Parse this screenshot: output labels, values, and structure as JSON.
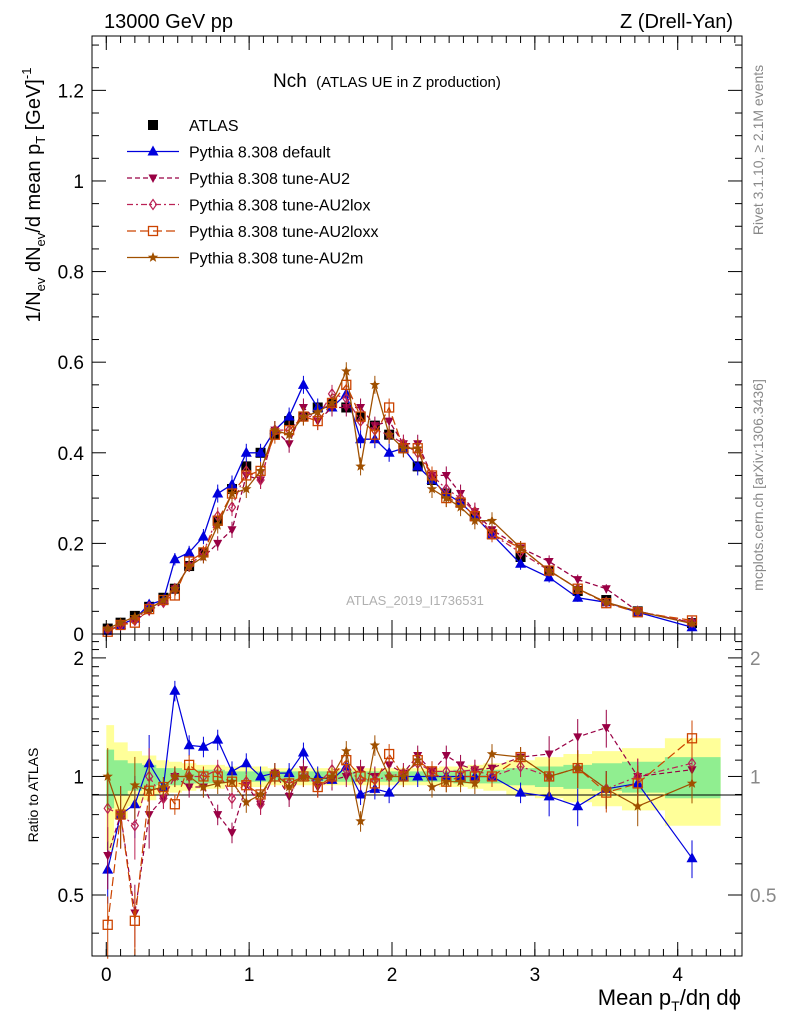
{
  "header": {
    "left": "13000 GeV pp",
    "right": "Z (Drell-Yan)"
  },
  "title": {
    "main": "Nch",
    "sub": "(ATLAS UE in Z production)"
  },
  "watermark": "ATLAS_2019_I1736531",
  "side_text": {
    "upper": "Rivet 3.1.10, ≥ 2.1M events",
    "lower": "mcplots.cern.ch [arXiv:1306.3436]"
  },
  "axes": {
    "ylabel_main": "1/N_ev dN_ev/d mean p_T [GeV]^-1",
    "ylabel_ratio": "Ratio to ATLAS",
    "xlabel": "Mean p_T/dη dϕ"
  },
  "colors": {
    "atlas": "#000000",
    "default": "#0000dd",
    "au2": "#990044",
    "au2lox": "#bb2255",
    "au2loxx": "#cc4400",
    "au2m": "#a05000",
    "band_inner": "#90ee90",
    "band_outer": "#ffff99"
  },
  "chart_data": [
    {
      "type": "scatter",
      "panel": "main",
      "xlim": [
        -0.1,
        4.45
      ],
      "ylim": [
        0,
        1.32
      ],
      "x_ticks": [
        0,
        1,
        2,
        3,
        4
      ],
      "y_ticks": [
        0,
        0.2,
        0.4,
        0.6,
        0.8,
        1,
        1.2
      ],
      "y_tick_labels": [
        "0",
        "0.2",
        "0.4",
        "0.6",
        "0.8",
        "1",
        "1.2"
      ],
      "x": [
        0.01,
        0.1,
        0.2,
        0.3,
        0.4,
        0.48,
        0.58,
        0.68,
        0.78,
        0.88,
        0.98,
        1.08,
        1.18,
        1.28,
        1.38,
        1.48,
        1.58,
        1.68,
        1.78,
        1.88,
        1.98,
        2.08,
        2.18,
        2.28,
        2.38,
        2.48,
        2.58,
        2.7,
        2.9,
        3.1,
        3.3,
        3.5,
        3.72,
        4.1
      ],
      "legend_position": "top-left",
      "series": [
        {
          "name": "ATLAS",
          "key": "atlas",
          "marker": "square",
          "line": "none",
          "values": [
            0.012,
            0.025,
            0.04,
            0.06,
            0.08,
            0.1,
            0.15,
            0.18,
            0.25,
            0.32,
            0.37,
            0.4,
            0.44,
            0.47,
            0.48,
            0.5,
            0.51,
            0.5,
            0.48,
            0.46,
            0.44,
            0.41,
            0.37,
            0.34,
            0.31,
            0.29,
            0.26,
            0.22,
            0.17,
            0.14,
            0.095,
            0.075,
            0.05,
            0.024
          ]
        },
        {
          "name": "Pythia 8.308 default",
          "key": "default",
          "marker": "triangle-up",
          "line": "solid",
          "values": [
            0.007,
            0.02,
            0.034,
            0.065,
            0.075,
            0.165,
            0.18,
            0.215,
            0.31,
            0.33,
            0.4,
            0.4,
            0.45,
            0.48,
            0.55,
            0.5,
            0.5,
            0.53,
            0.43,
            0.43,
            0.4,
            0.41,
            0.37,
            0.34,
            0.31,
            0.29,
            0.26,
            0.22,
            0.155,
            0.125,
            0.08,
            0.07,
            0.048,
            0.015
          ]
        },
        {
          "name": "Pythia 8.308 tune-AU2",
          "key": "au2",
          "marker": "triangle-down",
          "line": "dashed",
          "values": [
            0.008,
            0.02,
            0.03,
            0.05,
            0.07,
            0.1,
            0.15,
            0.17,
            0.2,
            0.23,
            0.35,
            0.34,
            0.45,
            0.42,
            0.5,
            0.47,
            0.5,
            0.5,
            0.5,
            0.46,
            0.47,
            0.42,
            0.42,
            0.35,
            0.35,
            0.31,
            0.27,
            0.23,
            0.19,
            0.16,
            0.12,
            0.1,
            0.05,
            0.025
          ]
        },
        {
          "name": "Pythia 8.308 tune-AU2lox",
          "key": "au2lox",
          "marker": "diamond",
          "line": "dashdot",
          "values": [
            0.01,
            0.02,
            0.03,
            0.06,
            0.07,
            0.1,
            0.15,
            0.18,
            0.26,
            0.28,
            0.36,
            0.34,
            0.45,
            0.45,
            0.48,
            0.48,
            0.53,
            0.52,
            0.47,
            0.45,
            0.44,
            0.42,
            0.4,
            0.35,
            0.32,
            0.3,
            0.27,
            0.22,
            0.18,
            0.14,
            0.1,
            0.07,
            0.05,
            0.026
          ]
        },
        {
          "name": "Pythia 8.308 tune-AU2loxx",
          "key": "au2loxx",
          "marker": "square-open",
          "line": "longdash",
          "values": [
            0.005,
            0.02,
            0.025,
            0.055,
            0.075,
            0.085,
            0.16,
            0.18,
            0.25,
            0.31,
            0.35,
            0.36,
            0.44,
            0.45,
            0.48,
            0.47,
            0.51,
            0.55,
            0.48,
            0.44,
            0.5,
            0.41,
            0.41,
            0.35,
            0.3,
            0.29,
            0.26,
            0.22,
            0.19,
            0.14,
            0.1,
            0.068,
            0.048,
            0.03
          ]
        },
        {
          "name": "Pythia 8.308 tune-AU2m",
          "key": "au2m",
          "marker": "star",
          "line": "solid",
          "values": [
            0.012,
            0.025,
            0.038,
            0.055,
            0.075,
            0.1,
            0.15,
            0.17,
            0.24,
            0.31,
            0.32,
            0.36,
            0.45,
            0.44,
            0.48,
            0.49,
            0.51,
            0.58,
            0.37,
            0.55,
            0.44,
            0.41,
            0.41,
            0.32,
            0.3,
            0.28,
            0.25,
            0.25,
            0.19,
            0.14,
            0.1,
            0.07,
            0.05,
            0.023
          ]
        }
      ]
    },
    {
      "type": "scatter",
      "panel": "ratio",
      "xlim": [
        -0.1,
        4.45
      ],
      "ylim": [
        0.35,
        2.3
      ],
      "log_scale_y": true,
      "x_ticks": [
        0,
        1,
        2,
        3,
        4
      ],
      "x_tick_labels": [
        "0",
        "1",
        "2",
        "3",
        "4"
      ],
      "y_ticks": [
        0.5,
        1,
        2
      ],
      "y_tick_labels": [
        "0.5",
        "1",
        "2"
      ],
      "reference_line": 1,
      "x": [
        0.01,
        0.1,
        0.2,
        0.3,
        0.4,
        0.48,
        0.58,
        0.68,
        0.78,
        0.88,
        0.98,
        1.08,
        1.18,
        1.28,
        1.38,
        1.48,
        1.58,
        1.68,
        1.78,
        1.88,
        1.98,
        2.08,
        2.18,
        2.28,
        2.38,
        2.48,
        2.58,
        2.7,
        2.9,
        3.1,
        3.3,
        3.5,
        3.72,
        4.1
      ],
      "band_inner": [
        0.17,
        0.1,
        0.08,
        0.07,
        0.05,
        0.05,
        0.04,
        0.04,
        0.04,
        0.03,
        0.03,
        0.03,
        0.03,
        0.03,
        0.03,
        0.03,
        0.03,
        0.03,
        0.03,
        0.03,
        0.03,
        0.03,
        0.03,
        0.03,
        0.03,
        0.04,
        0.04,
        0.04,
        0.05,
        0.06,
        0.07,
        0.08,
        0.09,
        0.12
      ],
      "band_outer": [
        0.35,
        0.22,
        0.16,
        0.13,
        0.1,
        0.09,
        0.08,
        0.07,
        0.07,
        0.06,
        0.06,
        0.06,
        0.05,
        0.05,
        0.05,
        0.05,
        0.05,
        0.05,
        0.05,
        0.05,
        0.05,
        0.05,
        0.05,
        0.05,
        0.06,
        0.06,
        0.07,
        0.08,
        0.1,
        0.12,
        0.14,
        0.16,
        0.18,
        0.25
      ],
      "series": [
        {
          "name": "Pythia 8.308 default",
          "key": "default",
          "marker": "triangle-up",
          "line": "solid",
          "values": [
            0.58,
            0.8,
            0.85,
            1.08,
            0.94,
            1.65,
            1.2,
            1.19,
            1.24,
            1.03,
            1.08,
            1.0,
            1.02,
            1.02,
            1.15,
            1.0,
            0.98,
            1.06,
            0.9,
            0.93,
            0.91,
            1.0,
            1.0,
            1.0,
            1.0,
            1.0,
            1.0,
            1.0,
            0.91,
            0.89,
            0.84,
            0.93,
            0.96,
            0.62
          ]
        },
        {
          "name": "Pythia 8.308 tune-AU2",
          "key": "au2",
          "marker": "triangle-down",
          "line": "dashed",
          "values": [
            0.63,
            0.8,
            0.45,
            0.8,
            0.88,
            1.0,
            0.94,
            0.94,
            0.8,
            0.72,
            0.95,
            0.85,
            1.02,
            0.89,
            1.04,
            0.94,
            0.98,
            1.0,
            1.04,
            1.0,
            1.07,
            1.02,
            1.13,
            1.03,
            1.13,
            1.07,
            1.04,
            1.05,
            1.12,
            1.14,
            1.26,
            1.33,
            1.0,
            1.04
          ]
        },
        {
          "name": "Pythia 8.308 tune-AU2lox",
          "key": "au2lox",
          "marker": "diamond",
          "line": "dashdot",
          "values": [
            0.83,
            0.8,
            0.75,
            1.0,
            0.88,
            1.0,
            1.0,
            1.0,
            1.04,
            0.88,
            0.97,
            0.85,
            1.02,
            0.96,
            1.0,
            0.96,
            1.04,
            1.04,
            0.98,
            0.98,
            1.0,
            1.02,
            1.08,
            1.03,
            1.03,
            1.03,
            1.04,
            1.0,
            1.06,
            1.0,
            1.05,
            0.93,
            1.0,
            1.08
          ]
        },
        {
          "name": "Pythia 8.308 tune-AU2loxx",
          "key": "au2loxx",
          "marker": "square-open",
          "line": "longdash",
          "values": [
            0.42,
            0.8,
            0.43,
            0.92,
            0.94,
            0.85,
            1.07,
            1.0,
            1.0,
            0.97,
            0.95,
            0.9,
            1.0,
            0.96,
            1.0,
            0.94,
            1.0,
            1.1,
            1.0,
            0.96,
            1.14,
            1.0,
            1.1,
            1.03,
            0.97,
            1.0,
            1.0,
            1.0,
            1.12,
            1.0,
            1.05,
            0.91,
            0.96,
            1.25
          ]
        },
        {
          "name": "Pythia 8.308 tune-AU2m",
          "key": "au2m",
          "marker": "star",
          "line": "solid",
          "values": [
            1.0,
            0.8,
            0.95,
            0.92,
            0.94,
            1.0,
            1.0,
            0.94,
            0.96,
            0.97,
            0.86,
            0.9,
            1.02,
            0.94,
            1.0,
            0.98,
            1.0,
            1.16,
            0.77,
            1.2,
            1.0,
            1.0,
            1.1,
            0.94,
            0.97,
            0.97,
            0.96,
            1.14,
            1.12,
            1.0,
            1.05,
            0.93,
            0.84,
            0.96
          ]
        }
      ]
    }
  ]
}
